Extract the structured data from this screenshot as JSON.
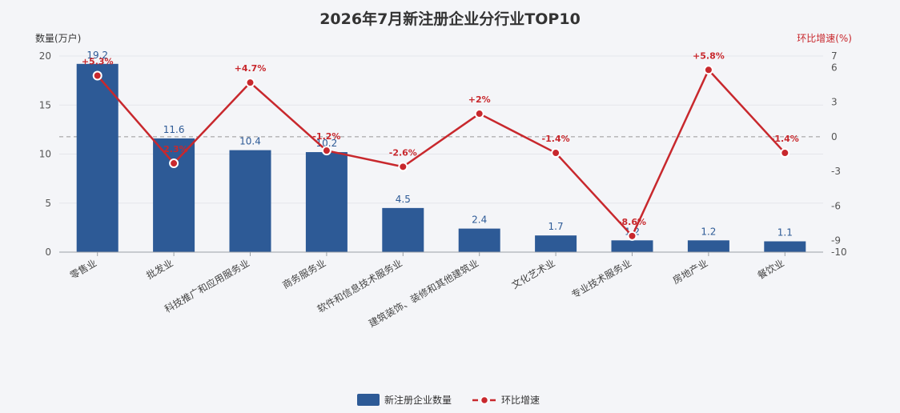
{
  "chart_data": {
    "type": "bar",
    "title": "2026年7月新注册企业分行业TOP10",
    "categories": [
      "零售业",
      "批发业",
      "科技推广和应用服务业",
      "商务服务业",
      "软件和信息技术服务业",
      "建筑装饰、装修和其他建筑业",
      "文化艺术业",
      "专业技术服务业",
      "房地产业",
      "餐饮业"
    ],
    "series": [
      {
        "name": "新注册企业数量",
        "type": "bar",
        "axis": "left",
        "values": [
          19.2,
          11.6,
          10.4,
          10.2,
          4.5,
          2.4,
          1.7,
          1.2,
          1.2,
          1.1
        ],
        "labels": [
          "19.2",
          "11.6",
          "10.4",
          "10.2",
          "4.5",
          "2.4",
          "1.7",
          "1.2",
          "1.2",
          "1.1"
        ],
        "color": "#2d5a96"
      },
      {
        "name": "环比增速",
        "type": "line",
        "axis": "right",
        "values": [
          5.3,
          -2.3,
          4.7,
          -1.2,
          -2.6,
          2.0,
          -1.4,
          -8.6,
          5.8,
          -1.4
        ],
        "labels": [
          "+5.3%",
          "-2.3%",
          "+4.7%",
          "-1.2%",
          "-2.6%",
          "+2%",
          "-1.4%",
          "-8.6%",
          "+5.8%",
          "-1.4%"
        ],
        "color": "#c8282d"
      }
    ],
    "y_left": {
      "label": "数量(万户)",
      "range": [
        0,
        20
      ],
      "ticks": [
        "0",
        "5",
        "10",
        "15",
        "20"
      ]
    },
    "y_right": {
      "label": "环比增速(%)",
      "range": [
        -10,
        7
      ],
      "ticks": [
        "-10",
        "-9",
        "-6",
        "-3",
        "0",
        "3",
        "6",
        "7"
      ],
      "tick_values": [
        -10,
        -9,
        -6,
        -3,
        0,
        3,
        6,
        7
      ],
      "zero_reference_line": true
    },
    "grid": true,
    "legend": "bottom-center",
    "colors": {
      "bar": "#2d5a96",
      "line": "#c8282d",
      "bar_label": "#2d5a96",
      "line_label": "#c8282d"
    }
  }
}
